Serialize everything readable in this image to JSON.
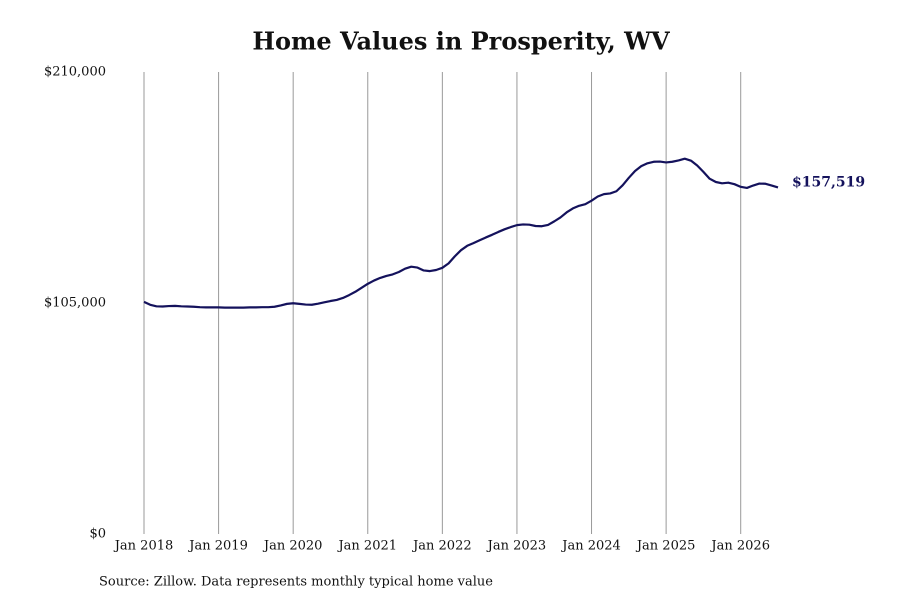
{
  "chart_data": {
    "type": "line",
    "title": "Home Values in Prosperity, WV",
    "source": "Source: Zillow. Data represents monthly typical home value",
    "annotation": "$157,519",
    "x": [
      "2018-01",
      "2018-02",
      "2018-03",
      "2018-04",
      "2018-05",
      "2018-06",
      "2018-07",
      "2018-08",
      "2018-09",
      "2018-10",
      "2018-11",
      "2018-12",
      "2019-01",
      "2019-02",
      "2019-03",
      "2019-04",
      "2019-05",
      "2019-06",
      "2019-07",
      "2019-08",
      "2019-09",
      "2019-10",
      "2019-11",
      "2019-12",
      "2020-01",
      "2020-02",
      "2020-03",
      "2020-04",
      "2020-05",
      "2020-06",
      "2020-07",
      "2020-08",
      "2020-09",
      "2020-10",
      "2020-11",
      "2020-12",
      "2021-01",
      "2021-02",
      "2021-03",
      "2021-04",
      "2021-05",
      "2021-06",
      "2021-07",
      "2021-08",
      "2021-09",
      "2021-10",
      "2021-11",
      "2021-12",
      "2022-01",
      "2022-02",
      "2022-03",
      "2022-04",
      "2022-05",
      "2022-06",
      "2022-07",
      "2022-08",
      "2022-09",
      "2022-10",
      "2022-11",
      "2022-12",
      "2023-01",
      "2023-02",
      "2023-03",
      "2023-04",
      "2023-05",
      "2023-06",
      "2023-07",
      "2023-08",
      "2023-09",
      "2023-10",
      "2023-11",
      "2023-12",
      "2024-01",
      "2024-02",
      "2024-03",
      "2024-04",
      "2024-05",
      "2024-06",
      "2024-07",
      "2024-08",
      "2024-09",
      "2024-10",
      "2024-11",
      "2024-12",
      "2025-01",
      "2025-02",
      "2025-03",
      "2025-04",
      "2025-05",
      "2025-06",
      "2025-07",
      "2025-08",
      "2025-09",
      "2025-10",
      "2025-11",
      "2025-12",
      "2026-01",
      "2026-02",
      "2026-03",
      "2026-04",
      "2026-05",
      "2026-06",
      "2026-07"
    ],
    "series": [
      {
        "name": "Home value",
        "color": "#14125c",
        "values": [
          105500,
          104200,
          103500,
          103400,
          103600,
          103700,
          103500,
          103400,
          103300,
          103100,
          103000,
          103000,
          103000,
          102900,
          102900,
          102900,
          102900,
          103000,
          103000,
          103100,
          103100,
          103300,
          103900,
          104600,
          104900,
          104600,
          104300,
          104200,
          104700,
          105300,
          105900,
          106400,
          107300,
          108600,
          110100,
          111900,
          113700,
          115200,
          116400,
          117300,
          118000,
          119100,
          120600,
          121500,
          121100,
          119800,
          119500,
          120000,
          121000,
          123000,
          126200,
          129000,
          131000,
          132200,
          133500,
          134800,
          136000,
          137300,
          138500,
          139500,
          140400,
          140700,
          140600,
          140000,
          139900,
          140500,
          142100,
          143900,
          146200,
          148000,
          149200,
          149900,
          151500,
          153400,
          154500,
          154800,
          155800,
          158500,
          161900,
          165000,
          167200,
          168500,
          169200,
          169300,
          168900,
          169200,
          169800,
          170600,
          169700,
          167500,
          164600,
          161500,
          160000,
          159400,
          159700,
          159000,
          157800,
          157300,
          158400,
          159300,
          159200,
          158400,
          157519
        ]
      }
    ],
    "xlim": [
      "2018-01",
      "2026-07"
    ],
    "xticks": [
      {
        "value": "2018-01",
        "label": "Jan 2018"
      },
      {
        "value": "2019-01",
        "label": "Jan 2019"
      },
      {
        "value": "2020-01",
        "label": "Jan 2020"
      },
      {
        "value": "2021-01",
        "label": "Jan 2021"
      },
      {
        "value": "2022-01",
        "label": "Jan 2022"
      },
      {
        "value": "2023-01",
        "label": "Jan 2023"
      },
      {
        "value": "2024-01",
        "label": "Jan 2024"
      },
      {
        "value": "2025-01",
        "label": "Jan 2025"
      },
      {
        "value": "2026-01",
        "label": "Jan 2026"
      }
    ],
    "ylim": [
      0,
      210000
    ],
    "yticks": [
      {
        "value": 0,
        "label": "$0"
      },
      {
        "value": 105000,
        "label": "$105,000"
      },
      {
        "value": 210000,
        "label": "$210,000"
      }
    ],
    "grid": true
  }
}
